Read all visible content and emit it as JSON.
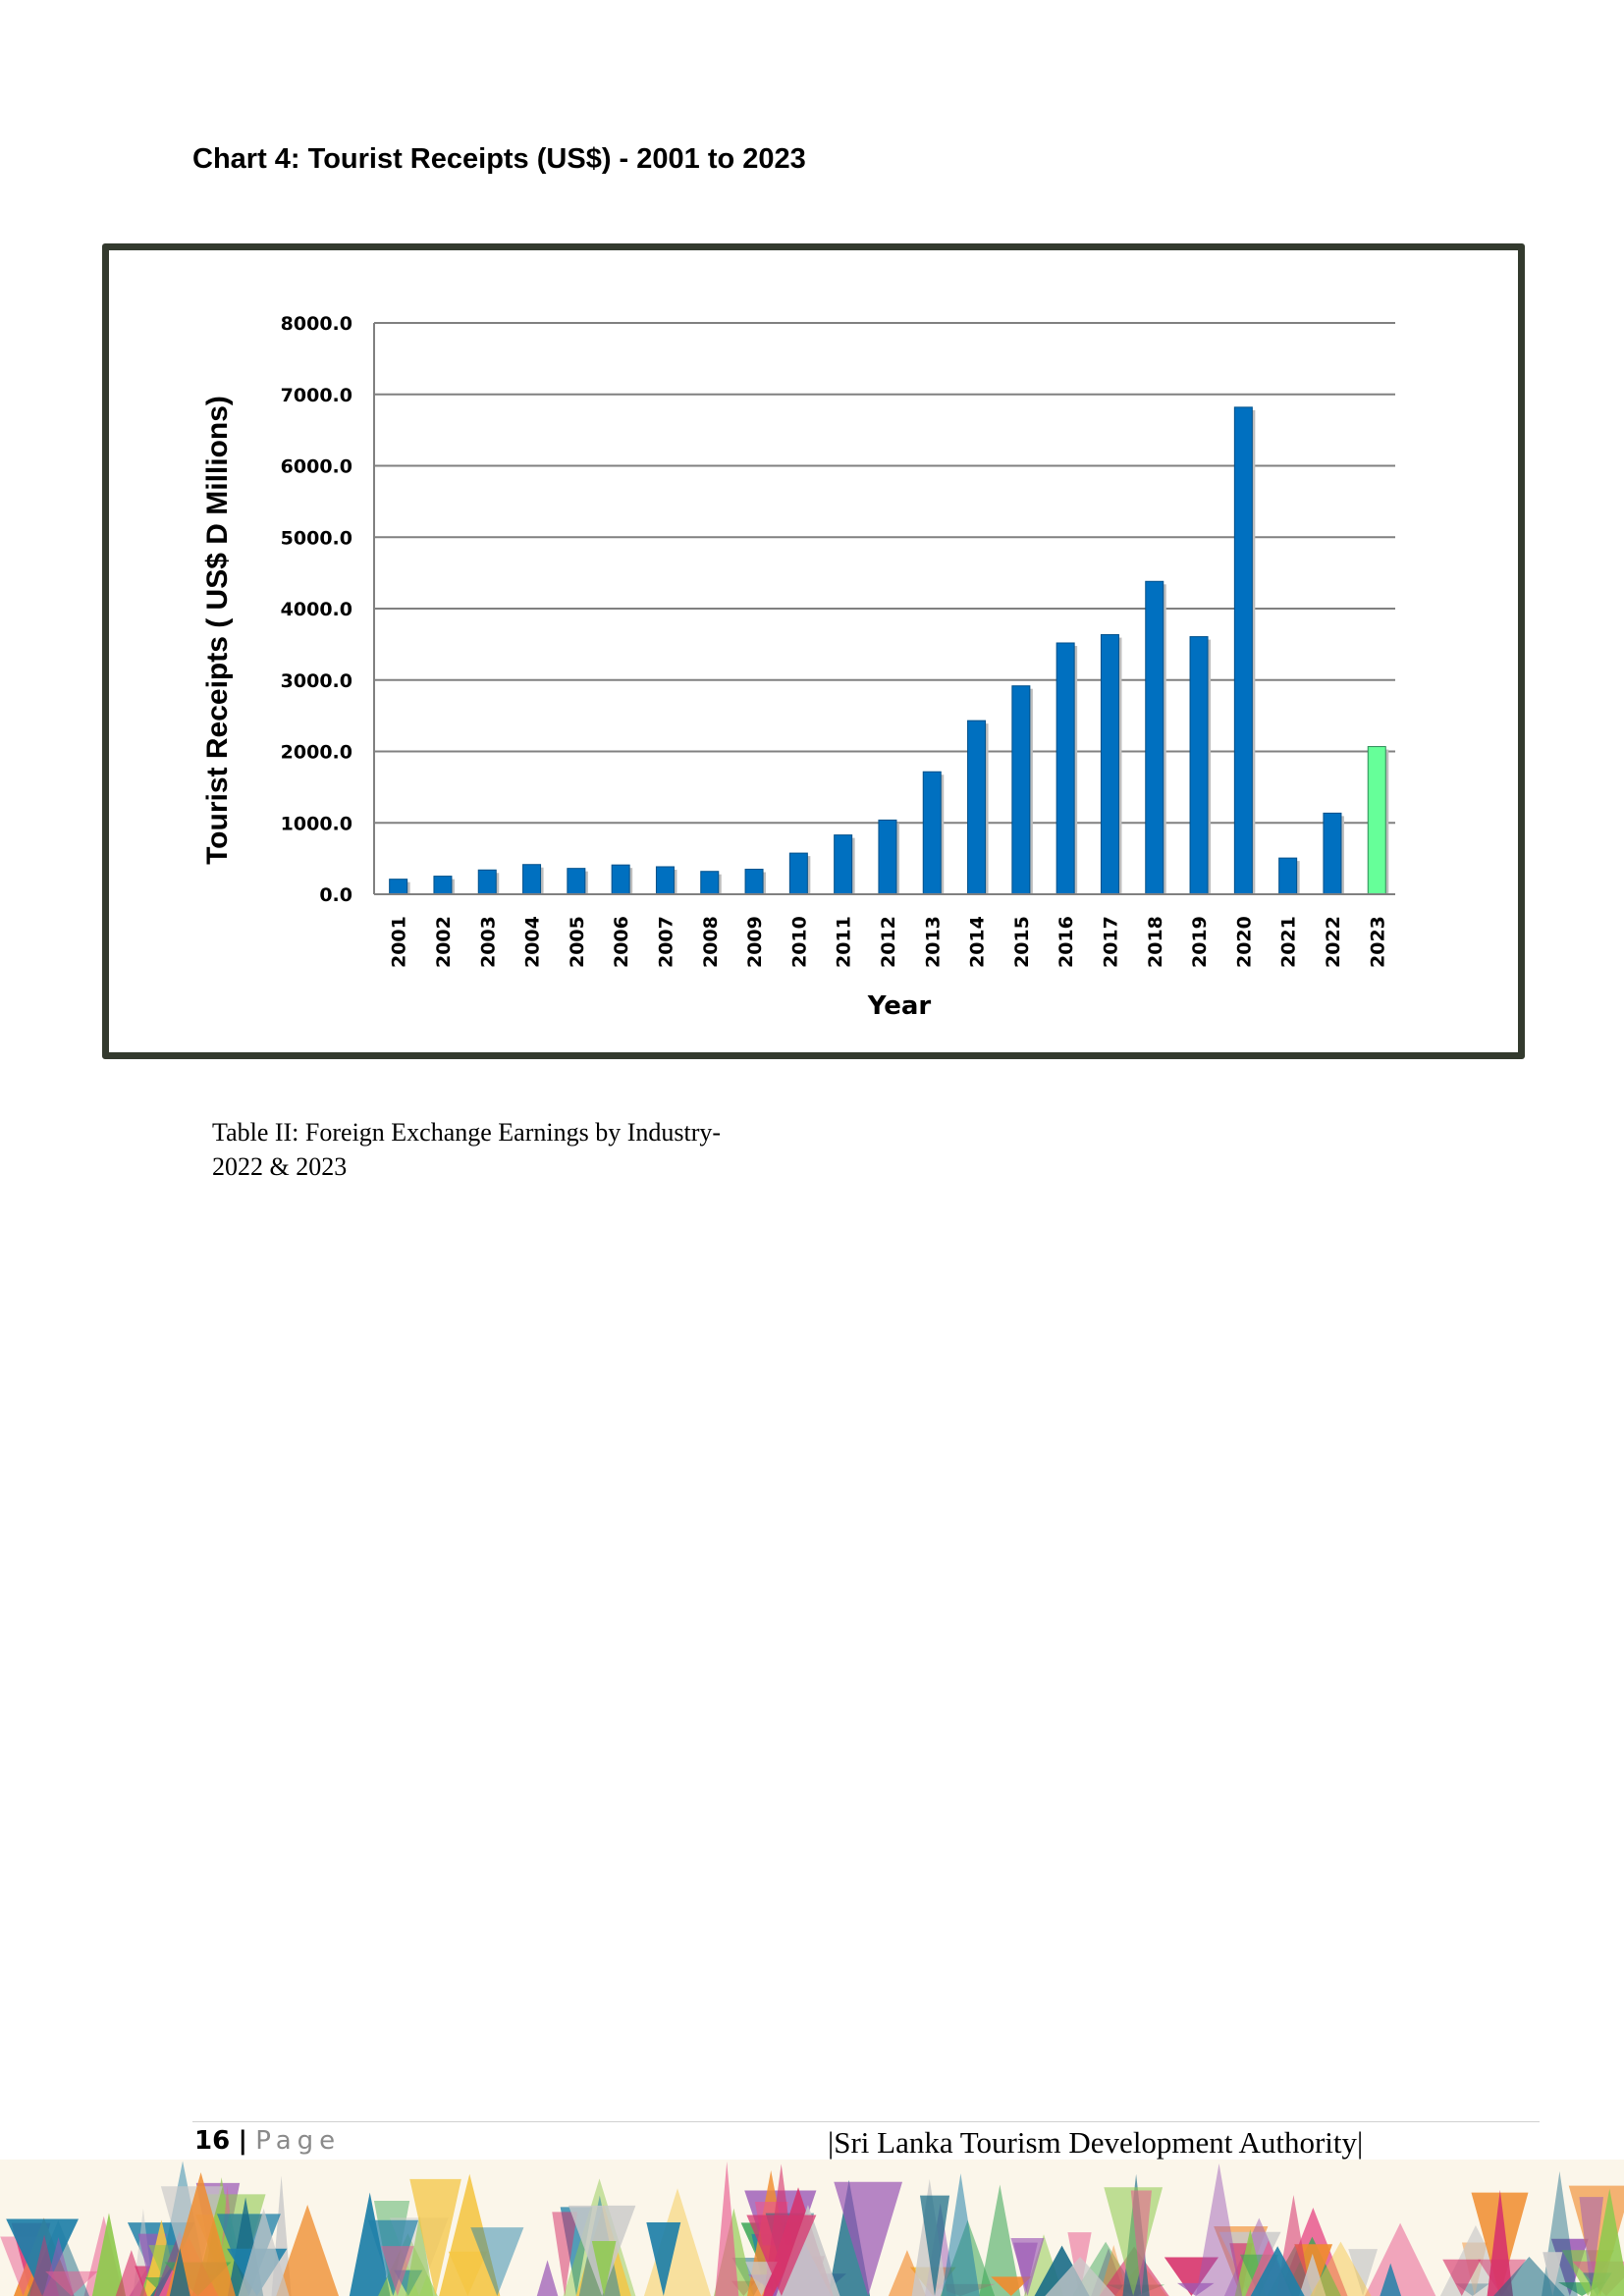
{
  "heading": "Chart 4: Tourist Receipts (US$) - 2001 to 2023",
  "chart_data": {
    "type": "bar",
    "ylabel": "Tourist Receipts ( US$ D Millions)",
    "xlabel": "Year",
    "ylim": [
      0,
      8000
    ],
    "yticks": [
      "0.0",
      "1000.0",
      "2000.0",
      "3000.0",
      "4000.0",
      "5000.0",
      "6000.0",
      "7000.0",
      "8000.0"
    ],
    "grid": true,
    "categories": [
      "2001",
      "2002",
      "2003",
      "2004",
      "2005",
      "2006",
      "2007",
      "2008",
      "2009",
      "2010",
      "2011",
      "2012",
      "2013",
      "2014",
      "2015",
      "2016",
      "2017",
      "2018",
      "2019",
      "2020",
      "2021",
      "2022",
      "2023"
    ],
    "values": [
      211,
      253,
      340,
      416,
      362,
      410,
      385,
      320,
      350,
      576,
      830,
      1039,
      1715,
      2431,
      2918,
      3519,
      3635,
      4381,
      3607,
      6820,
      507,
      1136,
      2068
    ],
    "colors": {
      "bar": "#0070c0",
      "highlight": "#66ff99",
      "highlight_category": "2023"
    }
  },
  "caption": "Table II: Foreign Exchange Earnings by Industry- 2022 & 2023",
  "footer": {
    "page_number": "16",
    "separator": "|",
    "page_label": "Page",
    "organization": "|Sri Lanka Tourism Development Authority|"
  }
}
